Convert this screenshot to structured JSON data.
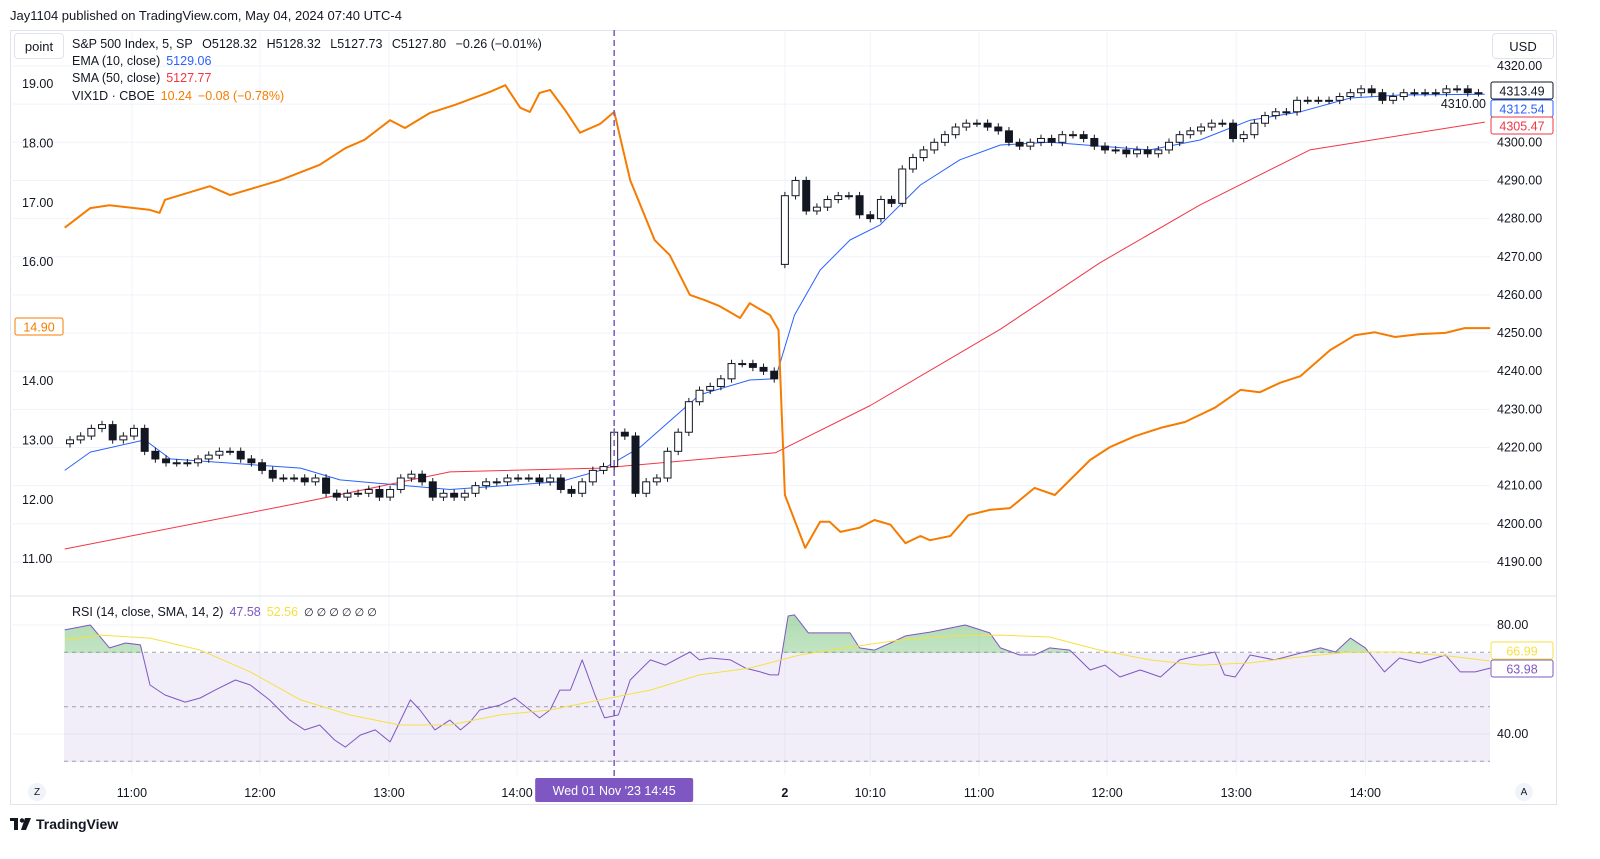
{
  "header": {
    "publisher": "Jay1104 published on TradingView.com, May 04, 2024 07:40 UTC-4"
  },
  "toolbar": {
    "point_label": "point",
    "currency_label": "USD",
    "zoom_button": "Z",
    "auto_button": "A"
  },
  "legend": {
    "symbol": "S&P 500 Index, 5, SP",
    "open": "O5128.32",
    "high": "H5128.32",
    "low": "L5127.73",
    "close": "C5127.80",
    "change": "−0.26 (−0.01%)",
    "ema_label": "EMA (10, close)",
    "ema_value": "5129.06",
    "sma_label": "SMA (50, close)",
    "sma_value": "5127.77",
    "vix_label": "VIX1D · CBOE",
    "vix_value": "10.24",
    "vix_change": "−0.08 (−0.78%)",
    "rsi_label": "RSI (14, close, SMA, 14, 2)",
    "rsi_value": "47.58",
    "rsi_sma_value": "52.56",
    "rsi_na": "∅ ∅ ∅ ∅ ∅ ∅"
  },
  "colors": {
    "ema": "#2962ff",
    "sma": "#f23645",
    "vix": "#f57c00",
    "rsi": "#7e57c2",
    "rsi_sma": "#f5e142",
    "crosshair": "#7e57c2"
  },
  "footer": {
    "brand": "TradingView"
  },
  "chart_data": {
    "type": "line",
    "title": "S&P 500 Index, 5, SP",
    "price_axis": {
      "range": [
        4190,
        4320
      ],
      "ticks": [
        "4320.00",
        "4310.00",
        "4300.00",
        "4290.00",
        "4280.00",
        "4270.00",
        "4260.00",
        "4250.00",
        "4240.00",
        "4230.00",
        "4220.00",
        "4210.00",
        "4200.00",
        "4190.00"
      ]
    },
    "vix_axis": {
      "range": [
        11,
        19
      ],
      "ticks": [
        "19.00",
        "18.00",
        "17.00",
        "16.00",
        "14.00",
        "13.00",
        "12.00",
        "11.00"
      ]
    },
    "rsi_axis": {
      "ticks": [
        "80.00",
        "40.00"
      ],
      "bands": [
        70,
        50,
        30
      ]
    },
    "time_labels": [
      {
        "label": "11:00",
        "bar": 5.8
      },
      {
        "label": "12:00",
        "bar": 17.8
      },
      {
        "label": "13:00",
        "bar": 29.9
      },
      {
        "label": "14:00",
        "bar": 41.9
      },
      {
        "label": "2",
        "bar": 67,
        "bold": true
      },
      {
        "label": "10:10",
        "bar": 75
      },
      {
        "label": "11:00",
        "bar": 85.2
      },
      {
        "label": "12:00",
        "bar": 97.2
      },
      {
        "label": "13:00",
        "bar": 109.3
      },
      {
        "label": "14:00",
        "bar": 121.4
      }
    ],
    "crosshair": {
      "bar": 51,
      "label": "Wed 01 Nov '23   14:45"
    },
    "price_labels": {
      "last": "4313.49",
      "ema": "4312.54",
      "sma": "4305.47",
      "vix": "14.90",
      "rsi_sma": "66.99",
      "rsi": "63.98"
    },
    "candles": {
      "first_open": 4221,
      "close": [
        4222,
        4223,
        4225,
        4226,
        4222,
        4223,
        4225,
        4219,
        4217,
        4216,
        4216,
        4216,
        4217,
        4218,
        4219,
        4219,
        4217,
        4216,
        4214,
        4212,
        4212,
        4212,
        4211,
        4212,
        4208,
        4207,
        4208,
        4208,
        4209,
        4207,
        4209,
        4212,
        4213,
        4211,
        4207,
        4208,
        4207,
        4208,
        4210,
        4211,
        4211,
        4212,
        4212,
        4212,
        4211,
        4212,
        4209,
        4208,
        4211,
        4214,
        4215,
        4224,
        4223,
        4208,
        4211,
        4212,
        4219,
        4224,
        4232,
        4235,
        4236,
        4238,
        4242,
        4242,
        4241,
        4240,
        4238,
        4286,
        4290,
        4282,
        4283,
        4285,
        4286,
        4286,
        4281,
        4280,
        4285,
        4284,
        4293,
        4296,
        4298,
        4300,
        4302,
        4304,
        4305,
        4305,
        4304,
        4303,
        4300,
        4299,
        4300,
        4301,
        4300,
        4302,
        4302,
        4301,
        4299,
        4298,
        4298,
        4297,
        4298,
        4297,
        4298,
        4300,
        4302,
        4303,
        4304,
        4305,
        4305,
        4301,
        4302,
        4305,
        4307,
        4308,
        4308,
        4311,
        4311,
        4311,
        4311,
        4312,
        4313,
        4314,
        4313,
        4311,
        4312,
        4313,
        4313,
        4313,
        4313,
        4314,
        4314,
        4313,
        4313
      ],
      "day2_open": 4268
    },
    "series": [
      {
        "name": "EMA (10, close)",
        "axis": "price",
        "points": [
          [
            -0.5,
            4214
          ],
          [
            1.9,
            4218.8
          ],
          [
            7,
            4222
          ],
          [
            9.4,
            4217
          ],
          [
            21.6,
            4214.6
          ],
          [
            25.3,
            4211.5
          ],
          [
            35.6,
            4209
          ],
          [
            45.9,
            4211
          ],
          [
            49.7,
            4214
          ],
          [
            53.4,
            4220
          ],
          [
            59,
            4233.8
          ],
          [
            63.7,
            4237.7
          ],
          [
            66.1,
            4238
          ],
          [
            67.9,
            4254.7
          ],
          [
            70.3,
            4266.5
          ],
          [
            73.1,
            4274.4
          ],
          [
            75.9,
            4278.3
          ],
          [
            79.7,
            4288.8
          ],
          [
            83.4,
            4295.4
          ],
          [
            87.2,
            4299.3
          ],
          [
            91.8,
            4300
          ],
          [
            101.2,
            4298
          ],
          [
            105.9,
            4300.6
          ],
          [
            110.6,
            4305.8
          ],
          [
            115.3,
            4308
          ],
          [
            120,
            4311.6
          ],
          [
            124.6,
            4312.4
          ],
          [
            132.6,
            4312.6
          ]
        ]
      },
      {
        "name": "SMA (50, close)",
        "axis": "price",
        "points": [
          [
            -0.5,
            4193.4
          ],
          [
            21.6,
            4205.5
          ],
          [
            35.6,
            4213.6
          ],
          [
            49.7,
            4214.6
          ],
          [
            66.1,
            4218.6
          ],
          [
            75,
            4231
          ],
          [
            87.2,
            4251
          ],
          [
            96.5,
            4268.4
          ],
          [
            105.9,
            4283.6
          ],
          [
            116.2,
            4298
          ],
          [
            132.6,
            4305.3
          ]
        ]
      },
      {
        "name": "VIX1D · CBOE",
        "axis": "vix",
        "points": [
          [
            -0.5,
            16.58
          ],
          [
            1.9,
            16.91
          ],
          [
            3.7,
            16.96
          ],
          [
            7.5,
            16.88
          ],
          [
            8.4,
            16.83
          ],
          [
            8.9,
            17.05
          ],
          [
            13.1,
            17.28
          ],
          [
            15,
            17.13
          ],
          [
            19.7,
            17.38
          ],
          [
            23.4,
            17.64
          ],
          [
            25.8,
            17.92
          ],
          [
            27.6,
            18.06
          ],
          [
            30,
            18.39
          ],
          [
            31.4,
            18.26
          ],
          [
            33.7,
            18.51
          ],
          [
            36.1,
            18.65
          ],
          [
            39.4,
            18.87
          ],
          [
            40.8,
            18.98
          ],
          [
            42.2,
            18.6
          ],
          [
            43.1,
            18.53
          ],
          [
            44,
            18.85
          ],
          [
            45,
            18.9
          ],
          [
            46.4,
            18.56
          ],
          [
            47.8,
            18.18
          ],
          [
            49.7,
            18.33
          ],
          [
            51,
            18.53
          ],
          [
            52.5,
            17.38
          ],
          [
            54.8,
            16.37
          ],
          [
            56.2,
            16.12
          ],
          [
            58.1,
            15.45
          ],
          [
            59.5,
            15.36
          ],
          [
            60.9,
            15.26
          ],
          [
            62.8,
            15.06
          ],
          [
            63.7,
            15.31
          ],
          [
            65.6,
            15.11
          ],
          [
            66.4,
            14.86
          ],
          [
            67,
            12.08
          ],
          [
            67.9,
            11.66
          ],
          [
            68.9,
            11.19
          ],
          [
            70.3,
            11.63
          ],
          [
            71.2,
            11.63
          ],
          [
            72.2,
            11.46
          ],
          [
            74,
            11.53
          ],
          [
            75.4,
            11.66
          ],
          [
            76.9,
            11.58
          ],
          [
            78.3,
            11.27
          ],
          [
            79.7,
            11.39
          ],
          [
            80.6,
            11.32
          ],
          [
            82.5,
            11.39
          ],
          [
            84.2,
            11.74
          ],
          [
            86.2,
            11.83
          ],
          [
            88.1,
            11.86
          ],
          [
            90.4,
            12.2
          ],
          [
            92.3,
            12.08
          ],
          [
            95.6,
            12.67
          ],
          [
            97.5,
            12.89
          ],
          [
            99.8,
            13.07
          ],
          [
            102.2,
            13.21
          ],
          [
            104.5,
            13.31
          ],
          [
            107.3,
            13.55
          ],
          [
            109.7,
            13.85
          ],
          [
            111.5,
            13.81
          ],
          [
            113.4,
            13.97
          ],
          [
            115.3,
            14.08
          ],
          [
            118.1,
            14.52
          ],
          [
            120.4,
            14.77
          ],
          [
            122.3,
            14.82
          ],
          [
            124.2,
            14.74
          ],
          [
            126.5,
            14.79
          ],
          [
            128.9,
            14.81
          ],
          [
            130.7,
            14.89
          ],
          [
            133.1,
            14.89
          ]
        ]
      },
      {
        "name": "RSI",
        "axis": "rsi",
        "points": [
          [
            -0.5,
            78.2
          ],
          [
            1.9,
            80
          ],
          [
            3.7,
            71.6
          ],
          [
            5.2,
            73.4
          ],
          [
            6.6,
            72.7
          ],
          [
            7.5,
            58
          ],
          [
            8.9,
            54.3
          ],
          [
            10.8,
            51.7
          ],
          [
            12.2,
            53.2
          ],
          [
            13.6,
            56.1
          ],
          [
            15.5,
            59.8
          ],
          [
            16.9,
            58
          ],
          [
            18.7,
            52.5
          ],
          [
            20.6,
            45.1
          ],
          [
            22,
            41.5
          ],
          [
            23.4,
            43.3
          ],
          [
            24.8,
            37.8
          ],
          [
            25.8,
            35.2
          ],
          [
            27.2,
            39.6
          ],
          [
            28.6,
            41.5
          ],
          [
            30,
            37.1
          ],
          [
            31.9,
            52.5
          ],
          [
            32.8,
            48.8
          ],
          [
            34.2,
            41.5
          ],
          [
            35.6,
            45.1
          ],
          [
            36.6,
            41.5
          ],
          [
            37.5,
            44.4
          ],
          [
            38.4,
            48.8
          ],
          [
            40.3,
            50.6
          ],
          [
            41.7,
            53.2
          ],
          [
            43.1,
            48.8
          ],
          [
            44,
            45.9
          ],
          [
            45,
            48.8
          ],
          [
            45.9,
            56.1
          ],
          [
            46.9,
            56.1
          ],
          [
            48,
            67.2
          ],
          [
            49.2,
            54.3
          ],
          [
            50.1,
            45.9
          ],
          [
            51.4,
            47
          ],
          [
            52.5,
            59.8
          ],
          [
            54.4,
            67.2
          ],
          [
            55.8,
            65.3
          ],
          [
            58.1,
            70.1
          ],
          [
            59,
            67.2
          ],
          [
            60,
            67.9
          ],
          [
            61.9,
            67.2
          ],
          [
            63.3,
            64.2
          ],
          [
            64.7,
            62.8
          ],
          [
            65.6,
            61.7
          ],
          [
            66.4,
            61.7
          ],
          [
            67.3,
            83.3
          ],
          [
            67.9,
            83.7
          ],
          [
            69.2,
            77.1
          ],
          [
            73.1,
            77.1
          ],
          [
            74,
            71.6
          ],
          [
            75.4,
            70.8
          ],
          [
            76.9,
            73.4
          ],
          [
            78.3,
            76
          ],
          [
            80.6,
            77.4
          ],
          [
            83.9,
            80
          ],
          [
            86.2,
            77.1
          ],
          [
            87.2,
            71.6
          ],
          [
            89,
            69
          ],
          [
            90.4,
            69
          ],
          [
            91.8,
            71.6
          ],
          [
            93.7,
            70.8
          ],
          [
            95.6,
            63.5
          ],
          [
            97,
            65.3
          ],
          [
            98.4,
            60.9
          ],
          [
            100.3,
            63.5
          ],
          [
            102.2,
            60.9
          ],
          [
            104,
            67.2
          ],
          [
            107.3,
            70.1
          ],
          [
            108.2,
            61.7
          ],
          [
            109.2,
            60.9
          ],
          [
            110.6,
            69
          ],
          [
            112.9,
            67.2
          ],
          [
            115.3,
            69.7
          ],
          [
            117.2,
            71.6
          ],
          [
            118.6,
            70.1
          ],
          [
            120,
            75.2
          ],
          [
            121.4,
            71.6
          ],
          [
            123.2,
            62.8
          ],
          [
            124.6,
            67.9
          ],
          [
            126.5,
            66.1
          ],
          [
            128.9,
            69
          ],
          [
            130.3,
            62.8
          ],
          [
            131.7,
            62.8
          ],
          [
            133.1,
            64.2
          ]
        ]
      },
      {
        "name": "RSI SMA",
        "axis": "rsi",
        "points": [
          [
            -0.5,
            74.5
          ],
          [
            2.8,
            76.3
          ],
          [
            7.5,
            75.2
          ],
          [
            12.2,
            70.8
          ],
          [
            16.9,
            62.8
          ],
          [
            21.6,
            52.5
          ],
          [
            26.2,
            47
          ],
          [
            30.9,
            43.3
          ],
          [
            35.6,
            43.3
          ],
          [
            40.3,
            47
          ],
          [
            45,
            48.8
          ],
          [
            49.7,
            52.5
          ],
          [
            54.4,
            56.1
          ],
          [
            59,
            61.7
          ],
          [
            63.7,
            64.2
          ],
          [
            68.4,
            69
          ],
          [
            73.1,
            71.9
          ],
          [
            77.8,
            74.5
          ],
          [
            82.5,
            76
          ],
          [
            87.2,
            76.3
          ],
          [
            91.8,
            75.6
          ],
          [
            96.5,
            70.8
          ],
          [
            101.2,
            67.2
          ],
          [
            105.9,
            65.3
          ],
          [
            110.6,
            66.1
          ],
          [
            115.3,
            68.3
          ],
          [
            120,
            70.1
          ],
          [
            124.6,
            70.1
          ],
          [
            129.3,
            68.6
          ],
          [
            133.1,
            66.8
          ]
        ]
      }
    ]
  }
}
